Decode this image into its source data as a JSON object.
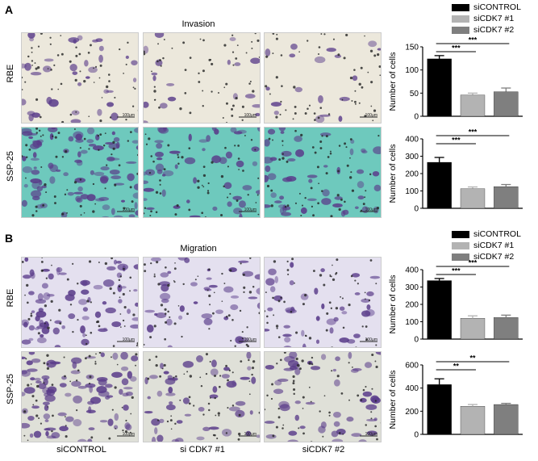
{
  "figure": {
    "panel_a_letter": "A",
    "panel_b_letter": "B",
    "panel_a_title": "Invasion",
    "panel_b_title": "Migration",
    "row_labels": [
      "RBE",
      "SSP-25"
    ],
    "column_labels": [
      "siCONTROL",
      "si CDK7 #1",
      "siCDK7 #2"
    ],
    "scale_bar_label": "100μm"
  },
  "legend": {
    "entries": [
      {
        "label": "siCONTROL",
        "color": "#000000"
      },
      {
        "label": "siCDK7 #1",
        "color": "#b3b3b3"
      },
      {
        "label": "siCDK7 #2",
        "color": "#7f7f7f"
      }
    ]
  },
  "colors": {
    "invasion_RBE_bg": "#ece8dc",
    "invasion_SSP25_bg": "#6ec9bd",
    "migration_RBE_bg": "#e4e0ef",
    "migration_SSP25_bg": "#dfe0d8",
    "cell": "#5a3c8a"
  },
  "chart_data": [
    {
      "type": "bar",
      "panel": "A",
      "cell_line": "RBE",
      "categories": [
        "siCONTROL",
        "siCDK7 #1",
        "siCDK7 #2"
      ],
      "values": [
        124,
        46,
        53
      ],
      "errors": [
        7,
        4,
        8
      ],
      "ylabel": "Number of cells",
      "ylim": [
        0,
        150
      ],
      "yticks": [
        0,
        50,
        100,
        150
      ],
      "significance": [
        {
          "from": 0,
          "to": 1,
          "label": "***"
        },
        {
          "from": 0,
          "to": 2,
          "label": "***"
        }
      ]
    },
    {
      "type": "bar",
      "panel": "A",
      "cell_line": "SSP-25",
      "categories": [
        "siCONTROL",
        "siCDK7 #1",
        "siCDK7 #2"
      ],
      "values": [
        265,
        113,
        125
      ],
      "errors": [
        28,
        10,
        12
      ],
      "ylabel": "Number of cells",
      "ylim": [
        0,
        400
      ],
      "yticks": [
        0,
        100,
        200,
        300,
        400
      ],
      "significance": [
        {
          "from": 0,
          "to": 1,
          "label": "***"
        },
        {
          "from": 0,
          "to": 2,
          "label": "***"
        }
      ]
    },
    {
      "type": "bar",
      "panel": "B",
      "cell_line": "RBE",
      "categories": [
        "siCONTROL",
        "siCDK7 #1",
        "siCDK7 #2"
      ],
      "values": [
        337,
        120,
        124
      ],
      "errors": [
        12,
        14,
        14
      ],
      "ylabel": "Number of cells",
      "ylim": [
        0,
        400
      ],
      "yticks": [
        0,
        100,
        200,
        300,
        400
      ],
      "significance": [
        {
          "from": 0,
          "to": 1,
          "label": "***"
        },
        {
          "from": 0,
          "to": 2,
          "label": "***"
        }
      ]
    },
    {
      "type": "bar",
      "panel": "B",
      "cell_line": "SSP-25",
      "categories": [
        "siCONTROL",
        "siCDK7 #1",
        "siCDK7 #2"
      ],
      "values": [
        430,
        243,
        258
      ],
      "errors": [
        50,
        15,
        10
      ],
      "ylabel": "Number of cells",
      "ylim": [
        0,
        600
      ],
      "yticks": [
        0,
        200,
        400,
        600
      ],
      "significance": [
        {
          "from": 0,
          "to": 1,
          "label": "**"
        },
        {
          "from": 0,
          "to": 2,
          "label": "**"
        }
      ]
    }
  ]
}
